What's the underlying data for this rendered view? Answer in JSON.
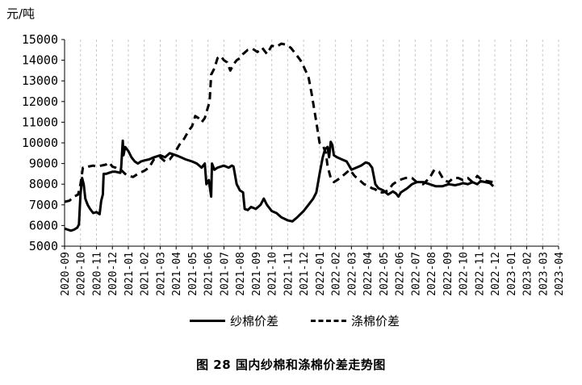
{
  "chart_data": {
    "type": "line",
    "title": "",
    "caption": "图 28   国内纱棉和涤棉价差走势图",
    "unit_label": "元/吨",
    "xlabel": "",
    "ylabel": "元/吨",
    "ylim": [
      5000,
      15000
    ],
    "yticks": [
      "5000",
      "6000",
      "7000",
      "8000",
      "9000",
      "10000",
      "11000",
      "12000",
      "13000",
      "14000",
      "15000"
    ],
    "grid": "vertical dashed",
    "legend_position": "bottom",
    "x_categories": [
      "2020-09",
      "2020-10",
      "2020-11",
      "2020-12",
      "2021-01",
      "2021-02",
      "2021-03",
      "2021-04",
      "2021-05",
      "2021-06",
      "2021-07",
      "2021-08",
      "2021-09",
      "2021-10",
      "2021-11",
      "2021-12",
      "2022-01",
      "2022-02",
      "2022-03",
      "2022-04",
      "2022-05",
      "2022-06",
      "2022-07",
      "2022-08",
      "2022-09",
      "2022-10",
      "2022-11",
      "2022-12",
      "2023-01",
      "2023-02",
      "2023-03",
      "2023-04"
    ],
    "series": [
      {
        "name": "纱棉价差",
        "style": "solid",
        "color": "#000000",
        "points": [
          [
            0.0,
            5850
          ],
          [
            0.2,
            5800
          ],
          [
            0.4,
            5750
          ],
          [
            0.6,
            5800
          ],
          [
            0.8,
            5900
          ],
          [
            0.9,
            6050
          ],
          [
            1.0,
            7500
          ],
          [
            1.1,
            8300
          ],
          [
            1.2,
            8000
          ],
          [
            1.3,
            7300
          ],
          [
            1.45,
            7000
          ],
          [
            1.6,
            6800
          ],
          [
            1.8,
            6600
          ],
          [
            2.0,
            6650
          ],
          [
            2.2,
            6550
          ],
          [
            2.3,
            7200
          ],
          [
            2.4,
            7500
          ],
          [
            2.45,
            8500
          ],
          [
            2.6,
            8500
          ],
          [
            2.8,
            8550
          ],
          [
            3.0,
            8600
          ],
          [
            3.2,
            8600
          ],
          [
            3.5,
            8550
          ],
          [
            3.55,
            8800
          ],
          [
            3.65,
            10100
          ],
          [
            3.7,
            9400
          ],
          [
            3.8,
            9800
          ],
          [
            4.0,
            9600
          ],
          [
            4.2,
            9300
          ],
          [
            4.4,
            9100
          ],
          [
            4.6,
            9000
          ],
          [
            4.8,
            9100
          ],
          [
            5.0,
            9150
          ],
          [
            5.3,
            9200
          ],
          [
            5.6,
            9300
          ],
          [
            6.0,
            9400
          ],
          [
            6.3,
            9300
          ],
          [
            6.6,
            9500
          ],
          [
            7.0,
            9400
          ],
          [
            7.3,
            9300
          ],
          [
            7.6,
            9200
          ],
          [
            8.0,
            9100
          ],
          [
            8.3,
            9000
          ],
          [
            8.6,
            8800
          ],
          [
            8.8,
            9000
          ],
          [
            8.9,
            8000
          ],
          [
            9.05,
            8200
          ],
          [
            9.2,
            7400
          ],
          [
            9.25,
            9000
          ],
          [
            9.4,
            8700
          ],
          [
            9.6,
            8800
          ],
          [
            10.0,
            8900
          ],
          [
            10.3,
            8800
          ],
          [
            10.5,
            8900
          ],
          [
            10.6,
            8850
          ],
          [
            10.8,
            8000
          ],
          [
            11.0,
            7700
          ],
          [
            11.2,
            7600
          ],
          [
            11.3,
            6800
          ],
          [
            11.5,
            6750
          ],
          [
            11.7,
            6900
          ],
          [
            12.0,
            6800
          ],
          [
            12.3,
            7000
          ],
          [
            12.5,
            7300
          ],
          [
            12.7,
            7000
          ],
          [
            13.0,
            6700
          ],
          [
            13.3,
            6600
          ],
          [
            13.6,
            6400
          ],
          [
            14.0,
            6250
          ],
          [
            14.3,
            6200
          ],
          [
            14.6,
            6400
          ],
          [
            15.0,
            6700
          ],
          [
            15.3,
            7000
          ],
          [
            15.6,
            7300
          ],
          [
            15.8,
            7600
          ],
          [
            16.0,
            8500
          ],
          [
            16.2,
            9300
          ],
          [
            16.35,
            9700
          ],
          [
            16.5,
            9800
          ],
          [
            16.6,
            9300
          ],
          [
            16.7,
            10050
          ],
          [
            16.8,
            9900
          ],
          [
            16.9,
            9400
          ],
          [
            17.1,
            9300
          ],
          [
            17.4,
            9200
          ],
          [
            17.7,
            9100
          ],
          [
            18.0,
            8700
          ],
          [
            18.3,
            8800
          ],
          [
            18.6,
            8900
          ],
          [
            18.9,
            9050
          ],
          [
            19.1,
            9000
          ],
          [
            19.3,
            8800
          ],
          [
            19.5,
            8000
          ],
          [
            19.7,
            7800
          ],
          [
            20.0,
            7700
          ],
          [
            20.3,
            7500
          ],
          [
            20.6,
            7650
          ],
          [
            20.8,
            7550
          ],
          [
            20.95,
            7400
          ],
          [
            21.1,
            7600
          ],
          [
            21.5,
            7800
          ],
          [
            21.8,
            8000
          ],
          [
            22.1,
            8100
          ],
          [
            22.5,
            8100
          ],
          [
            22.9,
            8000
          ],
          [
            23.3,
            7900
          ],
          [
            23.7,
            7900
          ],
          [
            24.1,
            8000
          ],
          [
            24.5,
            7950
          ],
          [
            24.8,
            8000
          ],
          [
            25.0,
            8050
          ],
          [
            25.3,
            8000
          ],
          [
            25.6,
            8100
          ],
          [
            25.9,
            8000
          ],
          [
            26.1,
            8150
          ],
          [
            26.4,
            8100
          ],
          [
            26.7,
            8050
          ],
          [
            26.9,
            7900
          ]
        ]
      },
      {
        "name": "涤棉价差",
        "style": "dashed",
        "color": "#000000",
        "points": [
          [
            0.0,
            7150
          ],
          [
            0.3,
            7200
          ],
          [
            0.6,
            7400
          ],
          [
            0.85,
            7500
          ],
          [
            1.0,
            8000
          ],
          [
            1.15,
            8800
          ],
          [
            1.3,
            8800
          ],
          [
            1.5,
            8850
          ],
          [
            1.8,
            8900
          ],
          [
            2.0,
            8850
          ],
          [
            2.3,
            8900
          ],
          [
            2.6,
            8950
          ],
          [
            2.8,
            9050
          ],
          [
            3.0,
            8850
          ],
          [
            3.2,
            8800
          ],
          [
            3.4,
            8700
          ],
          [
            3.6,
            8650
          ],
          [
            3.8,
            8500
          ],
          [
            4.0,
            8400
          ],
          [
            4.3,
            8350
          ],
          [
            4.6,
            8500
          ],
          [
            5.0,
            8650
          ],
          [
            5.3,
            8800
          ],
          [
            5.6,
            9200
          ],
          [
            6.0,
            9300
          ],
          [
            6.3,
            9100
          ],
          [
            6.6,
            9200
          ],
          [
            6.9,
            9500
          ],
          [
            7.2,
            9900
          ],
          [
            7.5,
            10200
          ],
          [
            7.8,
            10600
          ],
          [
            8.0,
            10800
          ],
          [
            8.2,
            11300
          ],
          [
            8.4,
            11200
          ],
          [
            8.6,
            11000
          ],
          [
            8.8,
            11200
          ],
          [
            8.95,
            11600
          ],
          [
            9.1,
            12000
          ],
          [
            9.2,
            13300
          ],
          [
            9.4,
            13600
          ],
          [
            9.6,
            14100
          ],
          [
            9.8,
            14200
          ],
          [
            10.0,
            14000
          ],
          [
            10.2,
            13900
          ],
          [
            10.4,
            13500
          ],
          [
            10.6,
            13800
          ],
          [
            10.8,
            14000
          ],
          [
            11.0,
            14100
          ],
          [
            11.2,
            14300
          ],
          [
            11.5,
            14500
          ],
          [
            11.8,
            14550
          ],
          [
            12.1,
            14400
          ],
          [
            12.4,
            14600
          ],
          [
            12.7,
            14300
          ],
          [
            13.0,
            14700
          ],
          [
            13.3,
            14650
          ],
          [
            13.6,
            14800
          ],
          [
            13.9,
            14750
          ],
          [
            14.2,
            14600
          ],
          [
            14.5,
            14300
          ],
          [
            14.8,
            14000
          ],
          [
            15.0,
            13700
          ],
          [
            15.3,
            13200
          ],
          [
            15.5,
            12400
          ],
          [
            15.8,
            11000
          ],
          [
            16.0,
            10000
          ],
          [
            16.2,
            9900
          ],
          [
            16.4,
            9500
          ],
          [
            16.5,
            8900
          ],
          [
            16.7,
            8300
          ],
          [
            16.9,
            8100
          ],
          [
            17.1,
            8200
          ],
          [
            17.3,
            8300
          ],
          [
            17.6,
            8500
          ],
          [
            17.9,
            8700
          ],
          [
            18.2,
            8400
          ],
          [
            18.5,
            8200
          ],
          [
            18.8,
            8000
          ],
          [
            19.1,
            7900
          ],
          [
            19.3,
            7800
          ],
          [
            19.5,
            7750
          ],
          [
            19.7,
            7600
          ],
          [
            20.0,
            7600
          ],
          [
            20.3,
            7700
          ],
          [
            20.6,
            8000
          ],
          [
            21.0,
            8200
          ],
          [
            21.4,
            8300
          ],
          [
            21.8,
            8300
          ],
          [
            22.1,
            8100
          ],
          [
            22.5,
            8000
          ],
          [
            22.9,
            8300
          ],
          [
            23.2,
            8700
          ],
          [
            23.5,
            8600
          ],
          [
            23.8,
            8200
          ],
          [
            24.1,
            8100
          ],
          [
            24.4,
            8300
          ],
          [
            24.7,
            8300
          ],
          [
            25.0,
            8200
          ],
          [
            25.3,
            8300
          ],
          [
            25.6,
            8100
          ],
          [
            25.9,
            8400
          ],
          [
            26.2,
            8200
          ],
          [
            26.5,
            8150
          ],
          [
            26.9,
            8100
          ]
        ]
      }
    ]
  }
}
